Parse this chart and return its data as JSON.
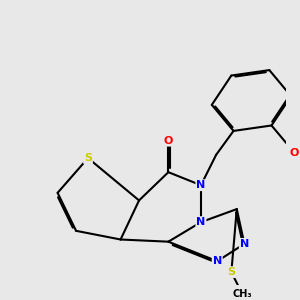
{
  "background_color": "#e8e8e8",
  "atom_colors": {
    "S": "#cccc00",
    "N": "#0000ff",
    "O": "#ff0000",
    "C": "#000000"
  },
  "bond_color": "#000000",
  "bond_width": 1.5,
  "figsize": [
    3.0,
    3.0
  ],
  "dpi": 100
}
